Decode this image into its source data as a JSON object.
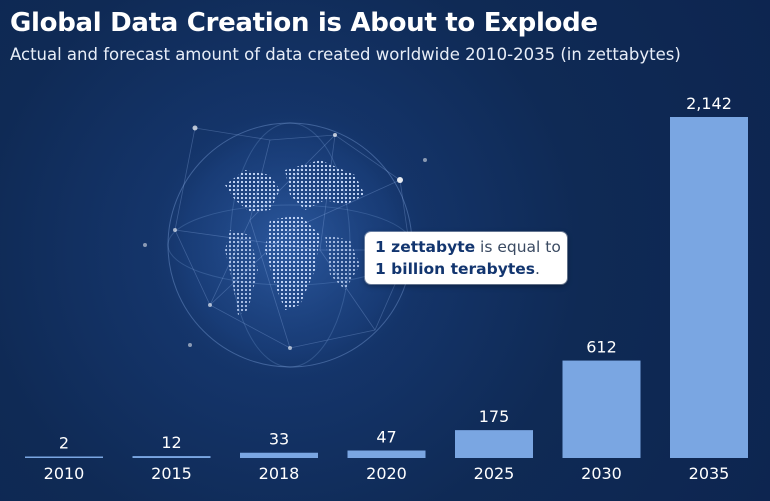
{
  "title": "Global Data Creation is About to Explode",
  "subtitle": "Actual and forecast amount of data created worldwide 2010-2035 (in zettabytes)",
  "callout": {
    "part1_bold": "1 zettabyte",
    "part1_rest": " is equal to",
    "part2_bold": "1 billion terabytes",
    "part2_rest": "."
  },
  "colors": {
    "background": "#0f2a55",
    "bar": "#7aa6e2",
    "text": "#ffffff",
    "callout_bold": "#12356f"
  },
  "chart_data": {
    "type": "bar",
    "categories": [
      "2010",
      "2015",
      "2018",
      "2020",
      "2025",
      "2030",
      "2035"
    ],
    "values": [
      2,
      12,
      33,
      47,
      175,
      612,
      2142
    ],
    "value_labels": [
      "2",
      "12",
      "33",
      "47",
      "175",
      "612",
      "2,142"
    ],
    "title": "Global Data Creation is About to Explode",
    "subtitle": "Actual and forecast amount of data created worldwide 2010-2035 (in zettabytes)",
    "xlabel": "",
    "ylabel": "",
    "ylim": [
      0,
      2142
    ],
    "grid": false,
    "legend": "none"
  }
}
